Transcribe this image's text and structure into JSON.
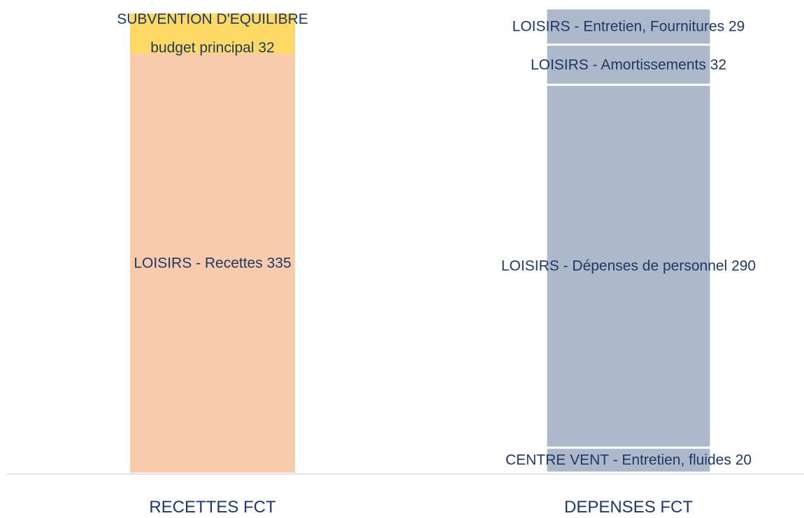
{
  "chart_data": {
    "type": "stacked_bar",
    "categories": [
      "RECETTES FCT",
      "DEPENSES FCT"
    ],
    "series": [
      {
        "name": "LOISIRS - Recettes",
        "color": "#f8cbad",
        "values": [
          335,
          null
        ]
      },
      {
        "name": "SUBVENTION D'EQUILIBRE budget principal",
        "color": "#ffd966",
        "values": [
          32,
          null
        ]
      },
      {
        "name": "CENTRE VENT - Entretien, fluides",
        "color": "#adb9ca",
        "values": [
          null,
          20
        ]
      },
      {
        "name": "LOISIRS - Dépenses de personnel",
        "color": "#adb9ca",
        "values": [
          null,
          290
        ]
      },
      {
        "name": "LOISIRS - Amortissements",
        "color": "#adb9ca",
        "values": [
          null,
          32
        ]
      },
      {
        "name": "LOISIRS - Entretien, Fournitures",
        "color": "#adb9ca",
        "values": [
          null,
          29
        ]
      }
    ],
    "ylim": [
      0,
      371
    ]
  }
}
